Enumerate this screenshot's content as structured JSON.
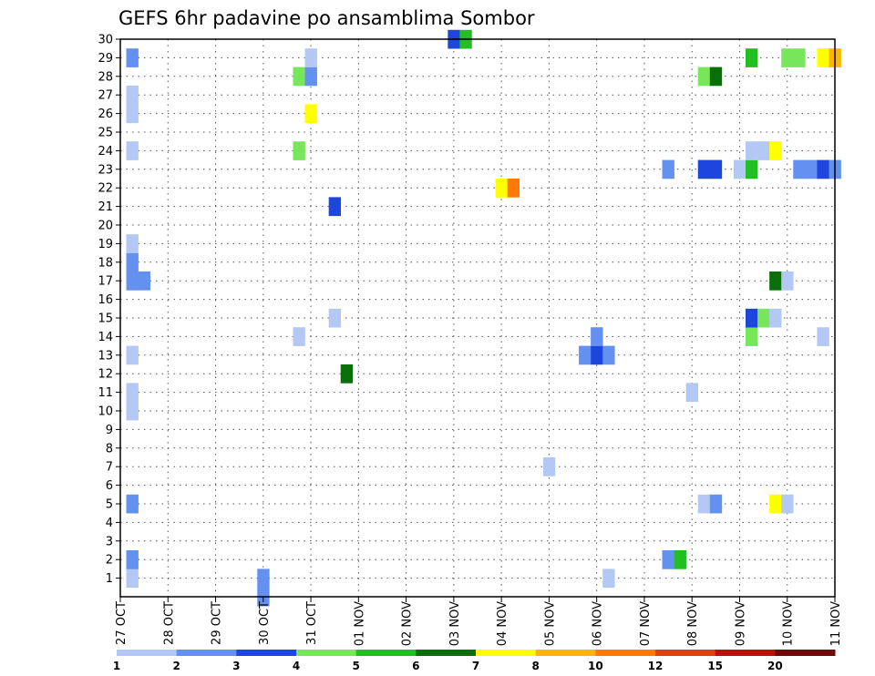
{
  "chart_data": {
    "type": "heatmap",
    "title": "GEFS 6hr padavine po ansamblima Sombor",
    "y_ticks": [
      "1",
      "2",
      "3",
      "4",
      "5",
      "6",
      "7",
      "8",
      "9",
      "10",
      "11",
      "12",
      "13",
      "14",
      "15",
      "16",
      "17",
      "18",
      "19",
      "20",
      "21",
      "22",
      "23",
      "24",
      "25",
      "26",
      "27",
      "28",
      "29",
      "30"
    ],
    "ylim": [
      0,
      30
    ],
    "x_ticks": [
      "27 OCT",
      "28 OCT",
      "29 OCT",
      "30 OCT",
      "31 OCT",
      "01 NOV",
      "02 NOV",
      "03 NOV",
      "04 NOV",
      "05 NOV",
      "06 NOV",
      "07 NOV",
      "08 NOV",
      "09 NOV",
      "10 NOV",
      "11 NOV"
    ],
    "xlim": [
      0,
      60
    ],
    "x_unit": "6-hour steps from 27 OCT 00Z",
    "grid": true,
    "legend": {
      "position": "bottom",
      "labels": [
        "1",
        "2",
        "3",
        "4",
        "5",
        "6",
        "7",
        "8",
        "10",
        "12",
        "15",
        "20"
      ],
      "colors": [
        "#b4c8f5",
        "#6490f0",
        "#1e46dc",
        "#78e65a",
        "#23be23",
        "#0a6e0a",
        "#ffff00",
        "#ffb400",
        "#ff780a",
        "#e63c14",
        "#b4140a",
        "#6e0a0a"
      ]
    },
    "cells": [
      {
        "t": 12,
        "m": 0,
        "c": 2
      },
      {
        "t": 12,
        "m": 1,
        "c": 2
      },
      {
        "t": 1,
        "m": 1,
        "c": 1
      },
      {
        "t": 1,
        "m": 2,
        "c": 2
      },
      {
        "t": 46,
        "m": 2,
        "c": 2
      },
      {
        "t": 47,
        "m": 2,
        "c": 5
      },
      {
        "t": 41,
        "m": 1,
        "c": 1
      },
      {
        "t": 1,
        "m": 5,
        "c": 2
      },
      {
        "t": 49,
        "m": 5,
        "c": 1
      },
      {
        "t": 50,
        "m": 5,
        "c": 2
      },
      {
        "t": 55,
        "m": 5,
        "c": 7
      },
      {
        "t": 56,
        "m": 5,
        "c": 1
      },
      {
        "t": 36,
        "m": 7,
        "c": 1
      },
      {
        "t": 1,
        "m": 10,
        "c": 1
      },
      {
        "t": 1,
        "m": 11,
        "c": 1
      },
      {
        "t": 48,
        "m": 11,
        "c": 1
      },
      {
        "t": 19,
        "m": 12,
        "c": 6
      },
      {
        "t": 1,
        "m": 13,
        "c": 1
      },
      {
        "t": 39,
        "m": 13,
        "c": 2
      },
      {
        "t": 40,
        "m": 13,
        "c": 3
      },
      {
        "t": 41,
        "m": 13,
        "c": 2
      },
      {
        "t": 40,
        "m": 14,
        "c": 2
      },
      {
        "t": 15,
        "m": 14,
        "c": 1
      },
      {
        "t": 53,
        "m": 14,
        "c": 4
      },
      {
        "t": 59,
        "m": 14,
        "c": 1
      },
      {
        "t": 18,
        "m": 15,
        "c": 1
      },
      {
        "t": 53,
        "m": 15,
        "c": 3
      },
      {
        "t": 54,
        "m": 15,
        "c": 4
      },
      {
        "t": 55,
        "m": 15,
        "c": 1
      },
      {
        "t": 1,
        "m": 17,
        "c": 2
      },
      {
        "t": 2,
        "m": 17,
        "c": 2
      },
      {
        "t": 55,
        "m": 17,
        "c": 6
      },
      {
        "t": 56,
        "m": 17,
        "c": 1
      },
      {
        "t": 1,
        "m": 18,
        "c": 2
      },
      {
        "t": 1,
        "m": 19,
        "c": 1
      },
      {
        "t": 18,
        "m": 21,
        "c": 3
      },
      {
        "t": 32,
        "m": 22,
        "c": 7
      },
      {
        "t": 33,
        "m": 22,
        "c": 9
      },
      {
        "t": 46,
        "m": 23,
        "c": 2
      },
      {
        "t": 49,
        "m": 23,
        "c": 3
      },
      {
        "t": 50,
        "m": 23,
        "c": 3
      },
      {
        "t": 52,
        "m": 23,
        "c": 1
      },
      {
        "t": 53,
        "m": 23,
        "c": 5
      },
      {
        "t": 57,
        "m": 23,
        "c": 2
      },
      {
        "t": 58,
        "m": 23,
        "c": 2
      },
      {
        "t": 59,
        "m": 23,
        "c": 3
      },
      {
        "t": 60,
        "m": 23,
        "c": 2
      },
      {
        "t": 1,
        "m": 24,
        "c": 1
      },
      {
        "t": 15,
        "m": 24,
        "c": 4
      },
      {
        "t": 53,
        "m": 24,
        "c": 1
      },
      {
        "t": 54,
        "m": 24,
        "c": 1
      },
      {
        "t": 55,
        "m": 24,
        "c": 7
      },
      {
        "t": 16,
        "m": 26,
        "c": 7
      },
      {
        "t": 1,
        "m": 26,
        "c": 1
      },
      {
        "t": 1,
        "m": 27,
        "c": 1
      },
      {
        "t": 15,
        "m": 28,
        "c": 4
      },
      {
        "t": 16,
        "m": 28,
        "c": 2
      },
      {
        "t": 49,
        "m": 28,
        "c": 4
      },
      {
        "t": 50,
        "m": 28,
        "c": 6
      },
      {
        "t": 1,
        "m": 29,
        "c": 2
      },
      {
        "t": 16,
        "m": 29,
        "c": 1
      },
      {
        "t": 53,
        "m": 29,
        "c": 5
      },
      {
        "t": 56,
        "m": 29,
        "c": 4
      },
      {
        "t": 57,
        "m": 29,
        "c": 4
      },
      {
        "t": 59,
        "m": 29,
        "c": 7
      },
      {
        "t": 60,
        "m": 29,
        "c": 8
      },
      {
        "t": 28,
        "m": 30,
        "c": 3
      },
      {
        "t": 29,
        "m": 30,
        "c": 5
      }
    ]
  }
}
